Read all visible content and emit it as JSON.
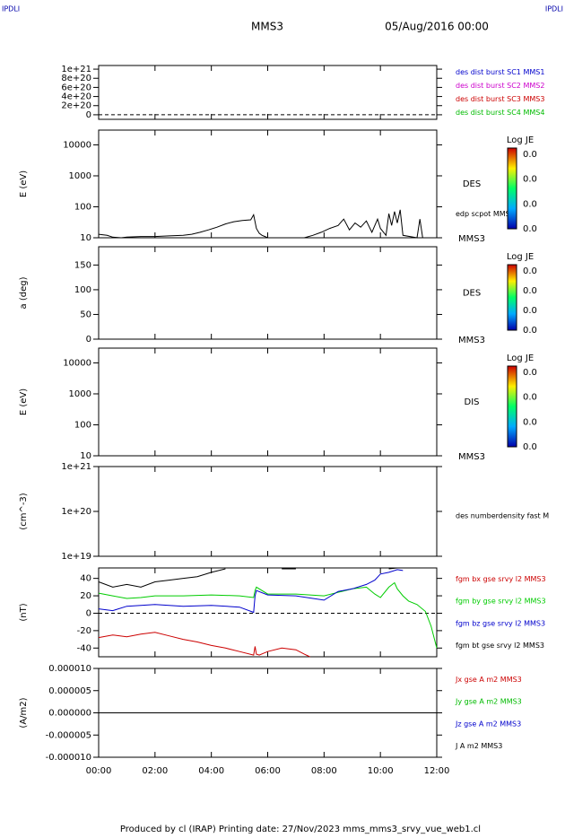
{
  "header": {
    "corner_left": "IPDLI",
    "corner_right": "IPDLI",
    "spacecraft": "MMS3",
    "date": "05/Aug/2016 00:00",
    "footer": "Produced by cl (IRAP)   Printing date: 27/Nov/2023   mms_mms3_srvy_vue_web1.cl"
  },
  "chart_data": [
    {
      "type": "line",
      "ylabel": "",
      "ylim": [
        -100000000000000000000,
        1080000000000000000000
      ],
      "zero_line": true,
      "yticks": [
        {
          "value": 0,
          "label": "0"
        },
        {
          "value": 200000000000000000000,
          "label": "2e+20"
        },
        {
          "value": 400000000000000000000,
          "label": "4e+20"
        },
        {
          "value": 600000000000000000000,
          "label": "6e+20"
        },
        {
          "value": 800000000000000000000,
          "label": "8e+20"
        },
        {
          "value": 1000000000000000000000,
          "label": "1e+21"
        }
      ],
      "series": [
        {
          "name": "des dist burst SC1 MMS1",
          "color": "#0000cc",
          "x": [],
          "values": []
        },
        {
          "name": "des dist burst SC2 MMS2",
          "color": "#cc00cc",
          "x": [],
          "values": []
        },
        {
          "name": "des dist burst SC3 MMS3",
          "color": "#cc0000",
          "x": [],
          "values": []
        },
        {
          "name": "des dist burst SC4 MMS4",
          "color": "#00bb00",
          "x": [],
          "values": []
        }
      ]
    },
    {
      "type": "spectrogram",
      "ylabel": "E (eV)",
      "log_y": true,
      "ylim": [
        10,
        30000
      ],
      "yticks": [
        10,
        100,
        1000,
        10000
      ],
      "annotations": [
        "DES",
        "MMS3"
      ],
      "colorbar": {
        "title": "Log JE",
        "ticks": [
          "0.0",
          "0.0",
          "0.0",
          "0.0"
        ]
      },
      "series": [
        {
          "name": "edp scpot MMS3",
          "color": "#000000",
          "x": [
            0,
            0.3,
            0.5,
            0.8,
            1,
            1.5,
            2,
            2.5,
            3,
            3.3,
            3.6,
            3.9,
            4.2,
            4.5,
            4.8,
            5.1,
            5.4,
            5.5,
            5.6,
            5.7,
            5.8,
            5.9,
            6,
            7.3,
            7.6,
            7.9,
            8.2,
            8.5,
            8.7,
            8.9,
            9.1,
            9.3,
            9.5,
            9.7,
            9.9,
            10,
            10.2,
            10.3,
            10.4,
            10.5,
            10.6,
            10.7,
            10.8,
            11.3,
            11.4,
            11.5
          ],
          "values": [
            13,
            12,
            10.5,
            10,
            10.5,
            11,
            11,
            11.5,
            12,
            13,
            15,
            18,
            22,
            28,
            33,
            36,
            38,
            55,
            20,
            14,
            12,
            11,
            10,
            10,
            12,
            15,
            20,
            25,
            40,
            18,
            30,
            22,
            35,
            15,
            40,
            20,
            12,
            60,
            25,
            70,
            30,
            80,
            12,
            10,
            40,
            10
          ]
        }
      ]
    },
    {
      "type": "spectrogram",
      "ylabel": "a (deg)",
      "ylim": [
        0,
        187
      ],
      "yticks": [
        0,
        50,
        100,
        150
      ],
      "annotations": [
        "DES",
        "MMS3"
      ],
      "colorbar": {
        "title": "Log JE",
        "ticks": [
          "0.0",
          "0.0",
          "0.0",
          "0.0"
        ]
      },
      "series": []
    },
    {
      "type": "spectrogram",
      "ylabel": "E (eV)",
      "log_y": true,
      "ylim": [
        10,
        30000
      ],
      "yticks": [
        10,
        100,
        1000,
        10000
      ],
      "annotations": [
        "DIS",
        "MMS3"
      ],
      "colorbar": {
        "title": "Log JE",
        "ticks": [
          "0.0",
          "0.0",
          "0.0",
          "0.0"
        ]
      },
      "series": []
    },
    {
      "type": "line",
      "ylabel": "(cm^-3)",
      "log_y": true,
      "ylim": [
        10000000000000000000,
        1000000000000000000000
      ],
      "yticks": [
        {
          "value": 10000000000000000000,
          "label": "1e+19"
        },
        {
          "value": 100000000000000000000,
          "label": "1e+20"
        },
        {
          "value": 1000000000000000000000,
          "label": "1e+21"
        }
      ],
      "series": [
        {
          "name": "des numberdensity fast M",
          "color": "#000000",
          "x": [],
          "values": []
        }
      ]
    },
    {
      "type": "line",
      "ylabel": "(nT)",
      "ylim": [
        -50,
        52
      ],
      "yticks": [
        -40,
        -20,
        0,
        20,
        40
      ],
      "zero_line": true,
      "series": [
        {
          "name": "fgm bx gse srvy l2 MMS3",
          "color": "#cc0000",
          "x": [
            0,
            0.5,
            1,
            1.5,
            2,
            2.5,
            3,
            3.5,
            4,
            4.5,
            5,
            5.5,
            5.55,
            5.6,
            5.7,
            6,
            6.5,
            7,
            7.3,
            7.5
          ],
          "values": [
            -28,
            -25,
            -27,
            -24,
            -22,
            -26,
            -30,
            -33,
            -37,
            -40,
            -44,
            -48,
            -38,
            -47,
            -48,
            -44,
            -40,
            -42,
            -47,
            -50
          ]
        },
        {
          "name": "fgm by gse srvy l2 MMS3",
          "color": "#00cc00",
          "x": [
            0,
            0.5,
            1,
            1.5,
            2,
            3,
            4,
            5,
            5.5,
            5.55,
            5.6,
            6,
            7,
            8,
            8.5,
            9,
            9.5,
            9.8,
            10,
            10.3,
            10.5,
            10.6,
            10.8,
            11,
            11.3,
            11.6,
            11.8,
            12
          ],
          "values": [
            23,
            20,
            17,
            18,
            20,
            20,
            21,
            20,
            18,
            26,
            30,
            22,
            22,
            20,
            24,
            28,
            30,
            22,
            18,
            30,
            35,
            28,
            20,
            14,
            10,
            2,
            -15,
            -40
          ]
        },
        {
          "name": "fgm bz gse srvy l2 MMS3",
          "color": "#0000cc",
          "x": [
            0,
            0.5,
            1,
            2,
            3,
            4,
            5,
            5.5,
            5.55,
            5.6,
            6,
            7,
            8,
            8.5,
            9,
            9.5,
            9.8,
            10,
            10.3,
            10.6,
            10.8
          ],
          "values": [
            5,
            3,
            8,
            10,
            8,
            9,
            7,
            1,
            20,
            26,
            21,
            20,
            15,
            25,
            28,
            33,
            38,
            45,
            47,
            50,
            49
          ]
        },
        {
          "name": "fgm bt gse srvy l2 MMS3",
          "color": "#000000",
          "x": [
            0,
            0.5,
            1,
            1.5,
            2,
            2.5,
            3,
            3.5,
            4,
            4.5,
            null,
            6.5,
            7,
            null,
            10.3,
            10.6,
            10.8
          ],
          "values": [
            36,
            30,
            33,
            30,
            36,
            38,
            40,
            42,
            47,
            51,
            null,
            51,
            51,
            null,
            51,
            52,
            52
          ]
        }
      ]
    },
    {
      "type": "line",
      "ylabel": "(A/m2)",
      "ylim": [
        -1e-05,
        1e-05
      ],
      "yticks": [
        {
          "value": -1e-05,
          "label": "-0.000010"
        },
        {
          "value": -5e-06,
          "label": "-0.000005"
        },
        {
          "value": 0,
          "label": "0.000000"
        },
        {
          "value": 5e-06,
          "label": "0.000005"
        },
        {
          "value": 1e-05,
          "label": "0.000010"
        }
      ],
      "xlim": [
        0,
        12
      ],
      "xticks": [
        {
          "value": 0,
          "label": "00:00"
        },
        {
          "value": 2,
          "label": "02:00"
        },
        {
          "value": 4,
          "label": "04:00"
        },
        {
          "value": 6,
          "label": "06:00"
        },
        {
          "value": 8,
          "label": "08:00"
        },
        {
          "value": 10,
          "label": "10:00"
        },
        {
          "value": 12,
          "label": "12:00"
        }
      ],
      "series": [
        {
          "name": "Jx gse A m2 MMS3",
          "color": "#cc0000",
          "x": [],
          "values": []
        },
        {
          "name": "Jy gse A m2 MMS3",
          "color": "#00bb00",
          "x": [],
          "values": []
        },
        {
          "name": "Jz gse A m2 MMS3",
          "color": "#0000cc",
          "x": [],
          "values": []
        },
        {
          "name": "J A m2 MMS3",
          "color": "#000000",
          "x": [
            0,
            3,
            6,
            9,
            12
          ],
          "values": [
            0,
            0,
            0,
            0,
            0
          ]
        }
      ]
    }
  ]
}
